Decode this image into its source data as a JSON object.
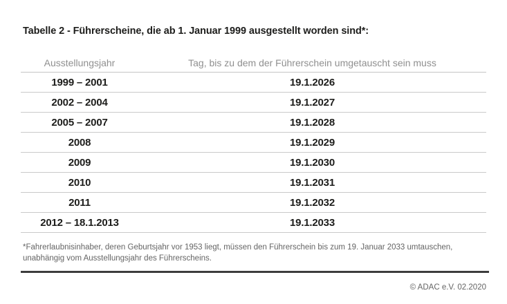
{
  "title": "Tabelle 2 - Führerscheine, die ab 1. Januar 1999 ausgestellt worden sind*:",
  "table": {
    "columns": [
      "Ausstellungsjahr",
      "Tag, bis zu dem der Führerschein umgetauscht sein muss"
    ],
    "rows": [
      {
        "issue_years": "1999 – 2001",
        "exchange_deadline": "19.1.2026"
      },
      {
        "issue_years": "2002 – 2004",
        "exchange_deadline": "19.1.2027"
      },
      {
        "issue_years": "2005 – 2007",
        "exchange_deadline": "19.1.2028"
      },
      {
        "issue_years": "2008",
        "exchange_deadline": "19.1.2029"
      },
      {
        "issue_years": "2009",
        "exchange_deadline": "19.1.2030"
      },
      {
        "issue_years": "2010",
        "exchange_deadline": "19.1.2031"
      },
      {
        "issue_years": "2011",
        "exchange_deadline": "19.1.2032"
      },
      {
        "issue_years": "2012 – 18.1.2013",
        "exchange_deadline": "19.1.2033"
      }
    ]
  },
  "footnote": "*Fahrerlaubnisinhaber, deren Geburtsjahr vor 1953 liegt, müssen den Führerschein bis zum 19. Januar 2033 umtauschen, unabhängig vom Ausstellungsjahr des Führerscheins.",
  "footer": {
    "copyright": "© ADAC e.V. 02.2020"
  },
  "colors": {
    "text_dark": "#1d1d1b",
    "header_gray": "#8f8f8f",
    "note_gray": "#646464",
    "row_separator": "#c9c9c9",
    "bottom_rule": "#3c3c3c",
    "background": "#ffffff"
  }
}
